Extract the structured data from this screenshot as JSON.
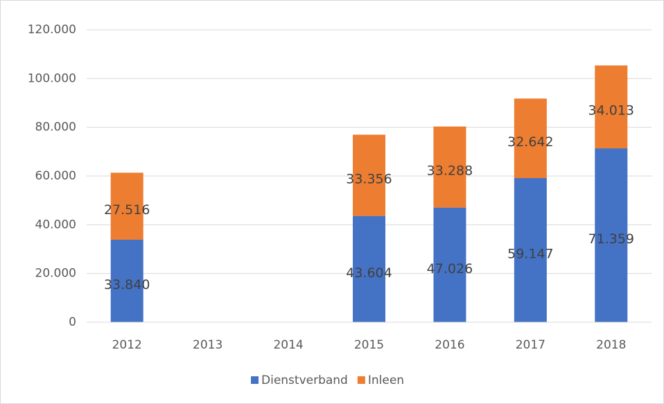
{
  "chart_data": {
    "type": "stacked_bar",
    "categories": [
      "2012",
      "2013",
      "2014",
      "2015",
      "2016",
      "2017",
      "2018"
    ],
    "series": [
      {
        "name": "Dienstverband",
        "color": "#4472c4",
        "values": [
          33840,
          null,
          null,
          43604,
          47026,
          59147,
          71359
        ],
        "value_labels": [
          "33.840",
          null,
          null,
          "43.604",
          "47.026",
          "59.147",
          "71.359"
        ]
      },
      {
        "name": "Inleen",
        "color": "#ed7d31",
        "values": [
          27516,
          null,
          null,
          33356,
          33288,
          32642,
          34013
        ],
        "value_labels": [
          "27.516",
          null,
          null,
          "33.356",
          "33.288",
          "32.642",
          "34.013"
        ]
      }
    ],
    "ylim": [
      0,
      120000
    ],
    "yticks": [
      0,
      {
        "value": 20000,
        "label": "20.000"
      },
      {
        "value": 40000,
        "label": "40.000"
      },
      {
        "value": 60000,
        "label": "60.000"
      },
      {
        "value": 80000,
        "label": "80.000"
      },
      {
        "value": 100000,
        "label": "100.000"
      },
      {
        "value": 120000,
        "label": "120.000"
      }
    ],
    "grid": true,
    "legend": "bottom"
  }
}
